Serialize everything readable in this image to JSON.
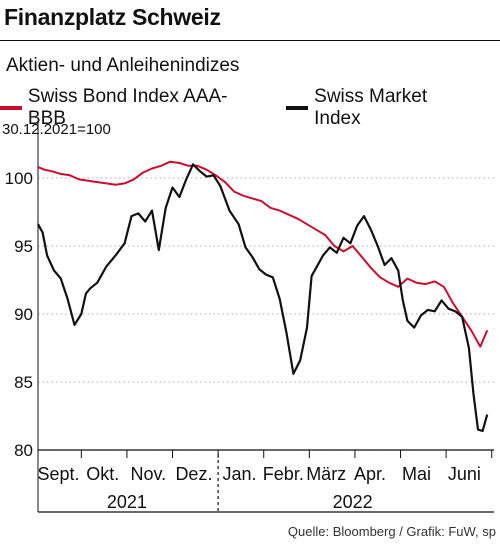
{
  "header": {
    "title": "Finanzplatz Schweiz",
    "subtitle": "Aktien- und Anleihenindizes"
  },
  "footer": {
    "source": "Quelle: Bloomberg / Grafik: FuW, sp"
  },
  "chart_data": {
    "type": "line",
    "base_label": "30.12.2021=100",
    "y_ticks": [
      80,
      85,
      90,
      95,
      100
    ],
    "ylim": [
      80,
      102.5
    ],
    "xlim": [
      0,
      10
    ],
    "grid": "horizontal",
    "legend_position": "top",
    "month_labels": [
      {
        "label": "Sept.",
        "x": 0.45
      },
      {
        "label": "Okt.",
        "x": 1.42
      },
      {
        "label": "Nov.",
        "x": 2.42
      },
      {
        "label": "Dez.",
        "x": 3.42
      },
      {
        "label": "Jan.",
        "x": 4.42
      },
      {
        "label": "Febr.",
        "x": 5.38
      },
      {
        "label": "März",
        "x": 6.32
      },
      {
        "label": "Apr.",
        "x": 7.28
      },
      {
        "label": "Mai",
        "x": 8.3
      },
      {
        "label": "Juni",
        "x": 9.35
      }
    ],
    "year_labels": [
      {
        "label": "2021",
        "x": 1.95
      },
      {
        "label": "2022",
        "x": 6.9
      }
    ],
    "year_boundary": 3.95,
    "series": [
      {
        "name": "Swiss Bond Index AAA-BBB",
        "color": "#c8102e",
        "x": [
          0,
          0.15,
          0.3,
          0.5,
          0.7,
          0.9,
          1.1,
          1.3,
          1.5,
          1.7,
          1.9,
          2.1,
          2.3,
          2.5,
          2.7,
          2.9,
          3.1,
          3.3,
          3.5,
          3.7,
          3.9,
          4.1,
          4.3,
          4.5,
          4.7,
          4.9,
          5.1,
          5.3,
          5.5,
          5.7,
          5.9,
          6.1,
          6.3,
          6.5,
          6.7,
          6.9,
          7.1,
          7.3,
          7.5,
          7.7,
          7.9,
          8.1,
          8.3,
          8.5,
          8.7,
          8.9,
          9.1,
          9.3,
          9.5,
          9.7,
          9.85
        ],
        "values": [
          100.8,
          100.6,
          100.5,
          100.3,
          100.2,
          99.9,
          99.8,
          99.7,
          99.6,
          99.5,
          99.6,
          99.9,
          100.4,
          100.7,
          100.9,
          101.2,
          101.1,
          100.9,
          100.9,
          100.6,
          100.2,
          99.7,
          99.0,
          98.7,
          98.5,
          98.3,
          97.8,
          97.6,
          97.3,
          97.0,
          96.6,
          96.2,
          95.8,
          95.0,
          94.6,
          95.0,
          94.2,
          93.4,
          92.7,
          92.3,
          92.0,
          92.6,
          92.3,
          92.2,
          92.4,
          92.0,
          90.8,
          89.8,
          88.8,
          87.6,
          88.8
        ]
      },
      {
        "name": "Swiss Market Index",
        "color": "#111111",
        "x": [
          0,
          0.1,
          0.2,
          0.35,
          0.5,
          0.65,
          0.8,
          0.95,
          1.05,
          1.15,
          1.3,
          1.5,
          1.7,
          1.9,
          2.05,
          2.2,
          2.35,
          2.5,
          2.65,
          2.8,
          2.95,
          3.1,
          3.25,
          3.4,
          3.55,
          3.7,
          3.85,
          4.0,
          4.2,
          4.4,
          4.55,
          4.7,
          4.85,
          5.0,
          5.15,
          5.3,
          5.45,
          5.6,
          5.75,
          5.9,
          6.0,
          6.1,
          6.25,
          6.4,
          6.55,
          6.7,
          6.85,
          7.0,
          7.15,
          7.3,
          7.45,
          7.6,
          7.75,
          7.9,
          8.0,
          8.1,
          8.25,
          8.4,
          8.55,
          8.7,
          8.85,
          9.0,
          9.15,
          9.3,
          9.45,
          9.55,
          9.65,
          9.75,
          9.85
        ],
        "values": [
          96.6,
          96.0,
          94.3,
          93.2,
          92.6,
          91.1,
          89.2,
          90.0,
          91.5,
          91.9,
          92.3,
          93.5,
          94.3,
          95.2,
          97.2,
          97.4,
          96.8,
          97.6,
          94.7,
          97.8,
          99.3,
          98.6,
          99.9,
          101.0,
          100.5,
          100.1,
          100.2,
          99.4,
          97.6,
          96.6,
          94.9,
          94.2,
          93.3,
          92.9,
          92.7,
          91.1,
          88.6,
          85.6,
          86.6,
          89.0,
          92.8,
          93.4,
          94.3,
          94.9,
          94.5,
          95.6,
          95.2,
          96.5,
          97.2,
          96.2,
          95.0,
          93.6,
          94.1,
          93.2,
          91.0,
          89.5,
          89.0,
          89.9,
          90.3,
          90.2,
          91.0,
          90.4,
          90.2,
          89.8,
          87.5,
          84.1,
          81.5,
          81.4,
          82.6
        ]
      }
    ]
  }
}
